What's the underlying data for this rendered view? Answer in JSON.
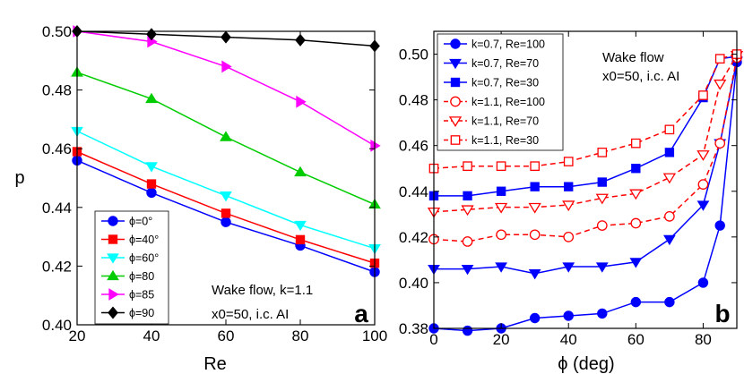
{
  "chart_data": [
    {
      "type": "line",
      "panel_label": "a",
      "xlabel": "Re",
      "ylabel": "p",
      "xlim": [
        20,
        100
      ],
      "ylim": [
        0.4,
        0.5
      ],
      "xticks": [
        "20",
        "40",
        "60",
        "80",
        "100"
      ],
      "yticks": [
        "0.40",
        "0.42",
        "0.44",
        "0.46",
        "0.48",
        "0.50"
      ],
      "annotation": [
        "Wake flow, k=1.1",
        "x0=50, i.c. AI"
      ],
      "legend_position": "bottom-left",
      "x": [
        20,
        40,
        60,
        80,
        100
      ],
      "series": [
        {
          "name": "ϕ=0°",
          "color": "#0000ff",
          "marker": "circle",
          "values": [
            0.456,
            0.445,
            0.435,
            0.427,
            0.418
          ]
        },
        {
          "name": "ϕ=40°",
          "color": "#ff0000",
          "marker": "square",
          "values": [
            0.459,
            0.448,
            0.438,
            0.429,
            0.421
          ]
        },
        {
          "name": "ϕ=60°",
          "color": "#00ffff",
          "marker": "triangle-down",
          "values": [
            0.466,
            0.454,
            0.444,
            0.434,
            0.426
          ]
        },
        {
          "name": "ϕ=80",
          "color": "#00cc00",
          "marker": "triangle-up",
          "values": [
            0.486,
            0.477,
            0.464,
            0.452,
            0.441
          ]
        },
        {
          "name": "ϕ=85",
          "color": "#ff00ff",
          "marker": "triangle-right",
          "values": [
            0.5,
            0.4965,
            0.488,
            0.476,
            0.461
          ]
        },
        {
          "name": "ϕ=90",
          "color": "#000000",
          "marker": "diamond",
          "values": [
            0.5,
            0.499,
            0.498,
            0.497,
            0.495
          ]
        }
      ]
    },
    {
      "type": "line",
      "panel_label": "b",
      "xlabel": "ϕ (deg)",
      "ylabel": "",
      "xlim": [
        0,
        90
      ],
      "ylim": [
        0.38,
        0.51
      ],
      "xticks": [
        "0",
        "20",
        "40",
        "60",
        "80"
      ],
      "yticks": [
        "0.38",
        "0.40",
        "0.42",
        "0.44",
        "0.46",
        "0.48",
        "0.50"
      ],
      "annotation": [
        "Wake flow",
        "x0=50, i.c. AI"
      ],
      "legend_position": "top-left",
      "x": [
        0,
        10,
        20,
        30,
        40,
        50,
        60,
        70,
        80,
        85,
        90
      ],
      "series": [
        {
          "name": "k=0.7, Re=100",
          "color": "#0000ff",
          "marker": "circle",
          "filled": true,
          "dashed": false,
          "values": [
            0.38,
            0.379,
            0.38,
            0.3845,
            0.3855,
            0.3865,
            0.3915,
            0.3915,
            0.4,
            0.425,
            0.4965
          ]
        },
        {
          "name": "k=0.7, Re=70",
          "color": "#0000ff",
          "marker": "triangle-down",
          "filled": true,
          "dashed": false,
          "values": [
            0.406,
            0.406,
            0.407,
            0.404,
            0.407,
            0.407,
            0.409,
            0.419,
            0.434,
            0.461,
            0.497
          ]
        },
        {
          "name": "k=0.7, Re=30",
          "color": "#0000ff",
          "marker": "square",
          "filled": true,
          "dashed": false,
          "values": [
            0.438,
            0.438,
            0.44,
            0.442,
            0.442,
            0.444,
            0.45,
            0.457,
            0.481,
            0.498,
            0.499
          ]
        },
        {
          "name": "k=1.1, Re=100",
          "color": "#ff0000",
          "marker": "circle",
          "filled": false,
          "dashed": true,
          "values": [
            0.419,
            0.418,
            0.421,
            0.421,
            0.42,
            0.425,
            0.426,
            0.429,
            0.443,
            0.461,
            0.4985
          ]
        },
        {
          "name": "k=1.1, Re=70",
          "color": "#ff0000",
          "marker": "triangle-down",
          "filled": false,
          "dashed": true,
          "values": [
            0.431,
            0.432,
            0.433,
            0.433,
            0.434,
            0.437,
            0.439,
            0.446,
            0.456,
            0.487,
            0.4995
          ]
        },
        {
          "name": "k=1.1, Re=30",
          "color": "#ff0000",
          "marker": "square",
          "filled": false,
          "dashed": true,
          "values": [
            0.45,
            0.451,
            0.451,
            0.451,
            0.453,
            0.457,
            0.461,
            0.467,
            0.482,
            0.498,
            0.5
          ]
        }
      ]
    }
  ]
}
